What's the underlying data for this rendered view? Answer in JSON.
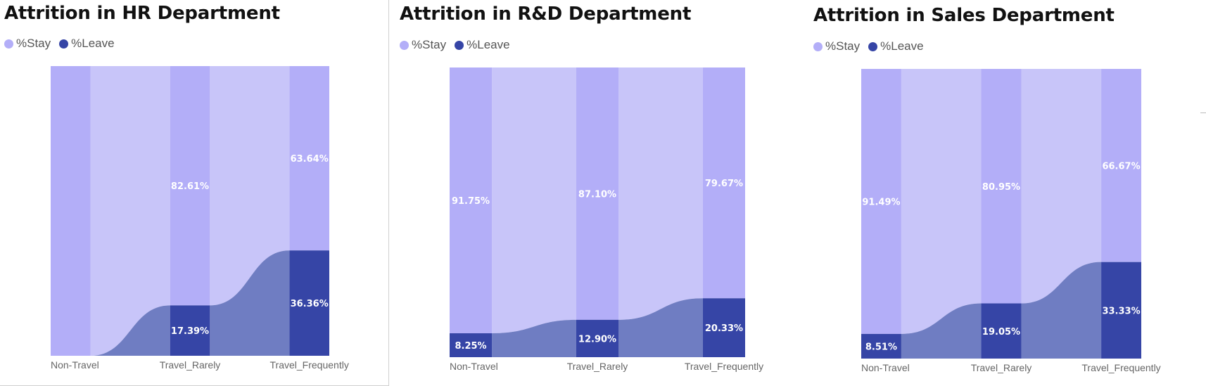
{
  "colors": {
    "stay": "#B3AEF8",
    "stay_ribbon": "#C8C5F9",
    "leave": "#3645A6",
    "leave_ribbon": "#6F7DC2",
    "legend_stay": "#B3AEF8",
    "legend_leave": "#3645A6"
  },
  "legend": {
    "stay_label": "%Stay",
    "leave_label": "%Leave"
  },
  "chart_data": [
    {
      "type": "ribbon",
      "title": "Attrition in HR Department",
      "categories": [
        "Non-Travel",
        "Travel_Rarely",
        "Travel_Frequently"
      ],
      "series": [
        {
          "name": "%Stay",
          "values": [
            100.0,
            82.61,
            63.64
          ],
          "labels": [
            "",
            "82.61%",
            "63.64%"
          ]
        },
        {
          "name": "%Leave",
          "values": [
            0.0,
            17.39,
            36.36
          ],
          "labels": [
            "",
            "17.39%",
            "36.36%"
          ]
        }
      ],
      "ylim": [
        0,
        100
      ]
    },
    {
      "type": "ribbon",
      "title": "Attrition in R&D Department",
      "categories": [
        "Non-Travel",
        "Travel_Rarely",
        "Travel_Frequently"
      ],
      "series": [
        {
          "name": "%Stay",
          "values": [
            91.75,
            87.1,
            79.67
          ],
          "labels": [
            "91.75%",
            "87.10%",
            "79.67%"
          ]
        },
        {
          "name": "%Leave",
          "values": [
            8.25,
            12.9,
            20.33
          ],
          "labels": [
            "8.25%",
            "12.90%",
            "20.33%"
          ]
        }
      ],
      "ylim": [
        0,
        100
      ]
    },
    {
      "type": "ribbon",
      "title": "Attrition in Sales Department",
      "categories": [
        "Non-Travel",
        "Travel_Rarely",
        "Travel_Frequently"
      ],
      "series": [
        {
          "name": "%Stay",
          "values": [
            91.49,
            80.95,
            66.67
          ],
          "labels": [
            "91.49%",
            "80.95%",
            "66.67%"
          ]
        },
        {
          "name": "%Leave",
          "values": [
            8.51,
            19.05,
            33.33
          ],
          "labels": [
            "8.51%",
            "19.05%",
            "33.33%"
          ]
        }
      ],
      "ylim": [
        0,
        100
      ]
    }
  ]
}
